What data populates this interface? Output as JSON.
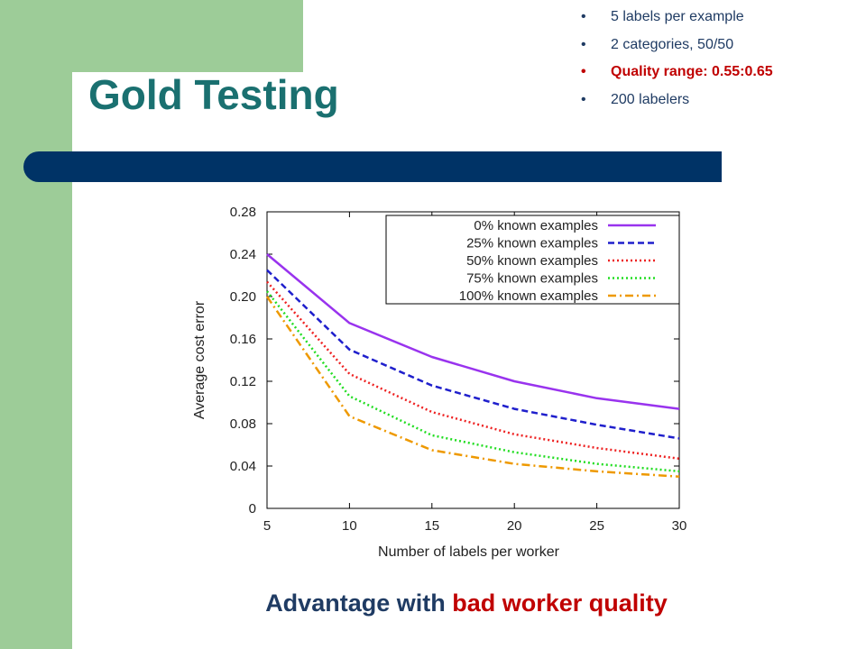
{
  "slide": {
    "title": "Gold Testing",
    "bullets": [
      {
        "text": "5 labels per example",
        "highlight": false
      },
      {
        "text": "2 categories, 50/50",
        "highlight": false
      },
      {
        "text": "Quality range: 0.55:0.65",
        "highlight": true
      },
      {
        "text": "200 labelers",
        "highlight": false
      }
    ],
    "caption_part1": "Advantage with",
    "caption_part2": "bad worker quality"
  },
  "colors": {
    "accent_green": "#9dcc98",
    "navy": "#003366",
    "title_teal": "#1a7070",
    "highlight_red": "#c00000"
  },
  "chart_data": {
    "type": "line",
    "xlabel": "Number of labels per worker",
    "ylabel": "Average cost error",
    "xlim": [
      5,
      30
    ],
    "ylim": [
      0,
      0.28
    ],
    "xticks": [
      "5",
      "10",
      "15",
      "20",
      "25",
      "30"
    ],
    "yticks": [
      "0",
      "0.04",
      "0.08",
      "0.12",
      "0.16",
      "0.20",
      "0.24",
      "0.28"
    ],
    "legend_position": "top-right",
    "x": [
      5,
      10,
      15,
      20,
      25,
      30
    ],
    "series": [
      {
        "name": "0% known examples",
        "color": "#9933ee",
        "dash": "solid",
        "values": [
          0.24,
          0.175,
          0.143,
          0.12,
          0.104,
          0.094
        ]
      },
      {
        "name": "25% known examples",
        "color": "#1f1fcc",
        "dash": "dashed",
        "values": [
          0.225,
          0.15,
          0.116,
          0.094,
          0.079,
          0.066
        ]
      },
      {
        "name": "50% known examples",
        "color": "#ee2222",
        "dash": "dotted",
        "values": [
          0.214,
          0.127,
          0.091,
          0.07,
          0.057,
          0.047
        ]
      },
      {
        "name": "75% known examples",
        "color": "#22dd22",
        "dash": "dotted",
        "values": [
          0.205,
          0.106,
          0.069,
          0.053,
          0.042,
          0.035
        ]
      },
      {
        "name": "100% known examples",
        "color": "#ee9900",
        "dash": "dashdot",
        "values": [
          0.2,
          0.087,
          0.055,
          0.042,
          0.035,
          0.03
        ]
      }
    ]
  }
}
